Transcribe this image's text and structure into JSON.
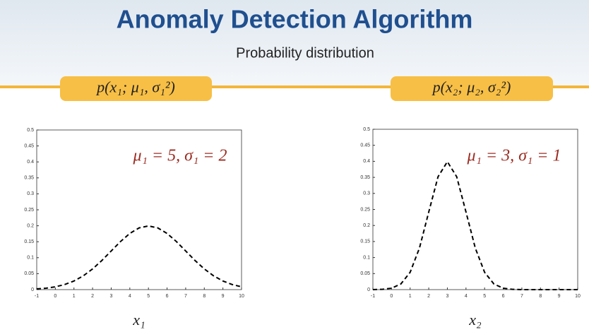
{
  "title": "Anomaly Detection Algorithm",
  "subtitle": "Probability distribution",
  "chart_data": [
    {
      "type": "line",
      "title": "p(x₁; μ₁, σ₁²)",
      "xlabel": "x₁",
      "annotation": "μ₁ = 5,  σ₁ = 2",
      "x": [
        -1,
        -0.5,
        0,
        0.5,
        1,
        1.5,
        2,
        2.5,
        3,
        3.5,
        4,
        4.5,
        5,
        5.5,
        6,
        6.5,
        7,
        7.5,
        8,
        8.5,
        9,
        9.5,
        10
      ],
      "values": [
        0.0022,
        0.0045,
        0.0088,
        0.0159,
        0.027,
        0.0431,
        0.0648,
        0.0913,
        0.121,
        0.1506,
        0.176,
        0.1933,
        0.1995,
        0.1933,
        0.176,
        0.1506,
        0.121,
        0.0913,
        0.0648,
        0.0431,
        0.027,
        0.0159,
        0.0088
      ],
      "color": "#000000",
      "line_style": "dashed",
      "xlim": [
        -1,
        10
      ],
      "xticks": [
        -1,
        0,
        1,
        2,
        3,
        4,
        5,
        6,
        7,
        8,
        9,
        10
      ],
      "ylim": [
        0,
        0.5
      ],
      "yticks": [
        0,
        0.05,
        0.1,
        0.15,
        0.2,
        0.25,
        0.3,
        0.35,
        0.4,
        0.45,
        0.5
      ]
    },
    {
      "type": "line",
      "title": "p(x₂; μ₂, σ₂²)",
      "xlabel": "x₂",
      "annotation": "μ₁ = 3,  σ₁ = 1",
      "x": [
        -1,
        -0.5,
        0,
        0.5,
        1,
        1.5,
        2,
        2.5,
        3,
        3.5,
        4,
        4.5,
        5,
        5.5,
        6,
        6.5,
        7,
        7.5,
        8,
        8.5,
        9,
        9.5,
        10
      ],
      "values": [
        0.0001,
        0.0009,
        0.0044,
        0.0175,
        0.054,
        0.1295,
        0.242,
        0.3521,
        0.3989,
        0.3521,
        0.242,
        0.1295,
        0.054,
        0.0175,
        0.0044,
        0.0009,
        0.0001,
        0,
        0,
        0,
        0,
        0,
        0
      ],
      "color": "#000000",
      "line_style": "dashed",
      "xlim": [
        -1,
        10
      ],
      "xticks": [
        -1,
        0,
        1,
        2,
        3,
        4,
        5,
        6,
        7,
        8,
        9,
        10
      ],
      "ylim": [
        0,
        0.5
      ],
      "yticks": [
        0,
        0.05,
        0.1,
        0.15,
        0.2,
        0.25,
        0.3,
        0.35,
        0.4,
        0.45,
        0.5
      ]
    }
  ]
}
